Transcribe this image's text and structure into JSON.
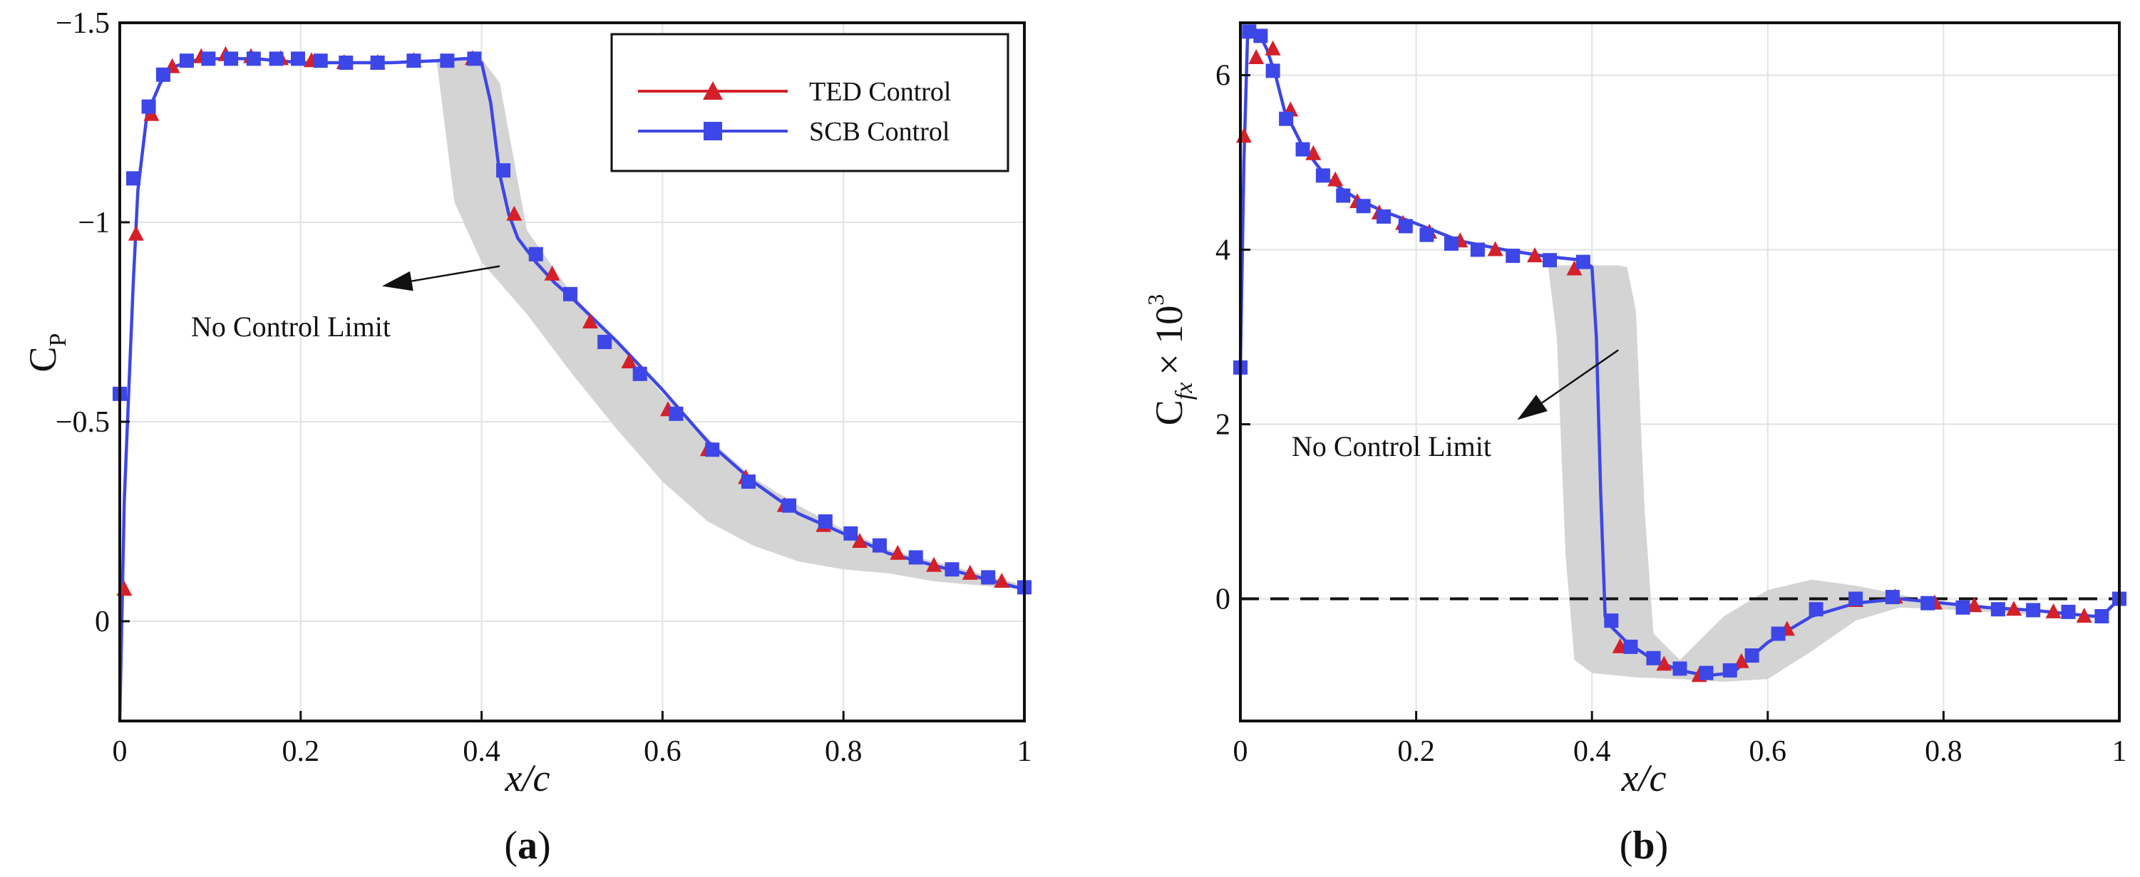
{
  "colors": {
    "ted": "#d4202a",
    "scb": "#3d46e6",
    "band": "#d4d4d4",
    "grid": "#e2e2e2"
  },
  "chart_data": [
    {
      "type": "line",
      "panel_label": "(a)",
      "panel_letter": "a",
      "xlabel": "x/c",
      "ylabel": "C",
      "ylabel_sub": "P",
      "xlim": [
        0,
        1
      ],
      "ylim": [
        0.25,
        -1.5
      ],
      "y_inverted": true,
      "xticks": [
        0,
        0.2,
        0.4,
        0.6,
        0.8,
        1
      ],
      "xtick_labels": [
        "0",
        "0.2",
        "0.4",
        "0.6",
        "0.8",
        "1"
      ],
      "yticks": [
        -1.5,
        -1,
        -0.5,
        0
      ],
      "ytick_labels": [
        "−1.5",
        "−1",
        "−0.5",
        "0"
      ],
      "legend": {
        "placement": "top-right",
        "entries": [
          {
            "name": "TED Control",
            "marker": "triangle",
            "color_key": "ted"
          },
          {
            "name": "SCB Control",
            "marker": "square",
            "color_key": "scb"
          }
        ]
      },
      "band": {
        "name": "No Control Limit",
        "upper": {
          "x": [
            0.35,
            0.36,
            0.38,
            0.4,
            0.42,
            0.45,
            0.5,
            0.55,
            0.6,
            0.65,
            0.7,
            0.75,
            0.8,
            0.85,
            0.9,
            0.95,
            1.0
          ],
          "y": [
            -1.41,
            -1.41,
            -1.41,
            -1.41,
            -1.35,
            -0.98,
            -0.82,
            -0.7,
            -0.57,
            -0.46,
            -0.36,
            -0.29,
            -0.23,
            -0.18,
            -0.15,
            -0.12,
            -0.09
          ]
        },
        "lower": {
          "x": [
            0.35,
            0.37,
            0.4,
            0.45,
            0.5,
            0.55,
            0.6,
            0.65,
            0.7,
            0.75,
            0.8,
            0.85,
            0.9,
            0.95,
            1.0
          ],
          "y": [
            -1.41,
            -1.05,
            -0.9,
            -0.77,
            -0.62,
            -0.48,
            -0.35,
            -0.25,
            -0.19,
            -0.15,
            -0.13,
            -0.12,
            -0.1,
            -0.09,
            -0.08
          ]
        }
      },
      "annotation": {
        "text": "No Control Limit",
        "points_to_x": 0.29,
        "points_to_y": -0.84,
        "from_x": 0.42,
        "from_y": -0.89
      },
      "series": [
        {
          "name": "SCB Control",
          "color_key": "scb",
          "marker": "square",
          "x": [
            0.0,
            0.005,
            0.01,
            0.015,
            0.02,
            0.03,
            0.045,
            0.06,
            0.08,
            0.1,
            0.12,
            0.15,
            0.2,
            0.25,
            0.3,
            0.35,
            0.38,
            0.39,
            0.4,
            0.41,
            0.42,
            0.43,
            0.44,
            0.46,
            0.48,
            0.5,
            0.55,
            0.6,
            0.65,
            0.7,
            0.75,
            0.8,
            0.85,
            0.9,
            0.95,
            1.0
          ],
          "y": [
            0.25,
            -0.3,
            -0.58,
            -0.85,
            -1.08,
            -1.27,
            -1.35,
            -1.39,
            -1.405,
            -1.41,
            -1.41,
            -1.41,
            -1.4,
            -1.4,
            -1.4,
            -1.405,
            -1.41,
            -1.41,
            -1.4,
            -1.3,
            -1.12,
            -1.02,
            -0.96,
            -0.9,
            -0.85,
            -0.81,
            -0.7,
            -0.58,
            -0.45,
            -0.35,
            -0.27,
            -0.22,
            -0.17,
            -0.14,
            -0.11,
            -0.08
          ],
          "markers_x": [
            0.0,
            0.015,
            0.032,
            0.048,
            0.074,
            0.098,
            0.123,
            0.148,
            0.173,
            0.197,
            0.222,
            0.25,
            0.285,
            0.325,
            0.362,
            0.392,
            0.424,
            0.46,
            0.498,
            0.536,
            0.575,
            0.615,
            0.655,
            0.695,
            0.74,
            0.78,
            0.808,
            0.84,
            0.88,
            0.92,
            0.96,
            1.0
          ],
          "markers_y": [
            -0.57,
            -1.11,
            -1.29,
            -1.37,
            -1.405,
            -1.41,
            -1.41,
            -1.41,
            -1.41,
            -1.41,
            -1.405,
            -1.4,
            -1.4,
            -1.405,
            -1.405,
            -1.41,
            -1.13,
            -0.92,
            -0.82,
            -0.7,
            -0.62,
            -0.52,
            -0.43,
            -0.35,
            -0.29,
            -0.25,
            -0.22,
            -0.19,
            -0.16,
            -0.13,
            -0.11,
            -0.085
          ]
        },
        {
          "name": "TED Control",
          "color_key": "ted",
          "marker": "triangle",
          "markers_x": [
            0.005,
            0.018,
            0.035,
            0.058,
            0.09,
            0.117,
            0.145,
            0.178,
            0.212,
            0.248,
            0.285,
            0.325,
            0.39,
            0.436,
            0.478,
            0.52,
            0.563,
            0.606,
            0.65,
            0.692,
            0.735,
            0.778,
            0.818,
            0.86,
            0.9,
            0.94,
            0.975
          ],
          "markers_y": [
            -0.08,
            -0.97,
            -1.27,
            -1.39,
            -1.415,
            -1.42,
            -1.415,
            -1.41,
            -1.405,
            -1.4,
            -1.4,
            -1.405,
            -1.41,
            -1.02,
            -0.87,
            -0.75,
            -0.65,
            -0.53,
            -0.43,
            -0.36,
            -0.29,
            -0.24,
            -0.2,
            -0.17,
            -0.14,
            -0.12,
            -0.1
          ]
        }
      ]
    },
    {
      "type": "line",
      "panel_label": "(b)",
      "panel_letter": "b",
      "xlabel": "x/c",
      "ylabel": "C",
      "ylabel_sub": "fx",
      "ylabel_times": "× 10",
      "ylabel_sup": "3",
      "xlim": [
        0,
        1
      ],
      "ylim": [
        -1.4,
        6.6
      ],
      "y_inverted": false,
      "xticks": [
        0,
        0.2,
        0.4,
        0.6,
        0.8,
        1
      ],
      "xtick_labels": [
        "0",
        "0.2",
        "0.4",
        "0.6",
        "0.8",
        "1"
      ],
      "yticks": [
        0,
        2,
        4,
        6
      ],
      "ytick_labels": [
        "0",
        "2",
        "4",
        "6"
      ],
      "reference_line": {
        "y": 0,
        "style": "dashed"
      },
      "band": {
        "name": "No Control Limit",
        "upper": {
          "x": [
            0.35,
            0.38,
            0.4,
            0.43,
            0.44,
            0.45,
            0.46,
            0.47,
            0.5,
            0.55,
            0.6,
            0.65,
            0.7,
            0.75,
            0.8,
            0.85,
            0.9
          ],
          "y": [
            3.82,
            3.82,
            3.82,
            3.82,
            3.8,
            3.3,
            1.0,
            -0.4,
            -0.7,
            -0.2,
            0.1,
            0.22,
            0.15,
            0.05,
            -0.05,
            -0.1,
            -0.15
          ]
        },
        "lower": {
          "x": [
            0.35,
            0.36,
            0.37,
            0.38,
            0.4,
            0.45,
            0.5,
            0.55,
            0.6,
            0.65,
            0.7,
            0.75,
            0.8,
            0.85,
            0.9
          ],
          "y": [
            3.82,
            3.0,
            0.5,
            -0.7,
            -0.85,
            -0.9,
            -0.92,
            -0.95,
            -0.92,
            -0.6,
            -0.25,
            -0.1,
            -0.12,
            -0.15,
            -0.18
          ]
        }
      },
      "annotation": {
        "text": "No Control Limit",
        "points_to_x": 0.315,
        "points_to_y": 2.05,
        "from_x": 0.43,
        "from_y": 2.85
      },
      "series": [
        {
          "name": "SCB Control",
          "color_key": "scb",
          "marker": "square",
          "x": [
            0.0,
            0.004,
            0.008,
            0.012,
            0.02,
            0.03,
            0.04,
            0.05,
            0.07,
            0.1,
            0.13,
            0.16,
            0.2,
            0.25,
            0.3,
            0.35,
            0.39,
            0.4,
            0.405,
            0.41,
            0.415,
            0.42,
            0.425,
            0.44,
            0.47,
            0.5,
            0.53,
            0.56,
            0.6,
            0.65,
            0.7,
            0.75,
            0.8,
            0.85,
            0.9,
            0.95,
            0.97,
            0.98,
            1.0
          ],
          "y": [
            2.65,
            5.0,
            6.4,
            6.55,
            6.5,
            6.3,
            6.0,
            5.6,
            5.2,
            4.8,
            4.6,
            4.45,
            4.3,
            4.1,
            4.0,
            3.92,
            3.88,
            3.8,
            3.0,
            1.2,
            -0.2,
            -0.3,
            -0.35,
            -0.5,
            -0.7,
            -0.82,
            -0.88,
            -0.85,
            -0.5,
            -0.2,
            -0.05,
            0.0,
            -0.05,
            -0.1,
            -0.13,
            -0.18,
            -0.2,
            -0.2,
            0.0
          ],
          "markers_x": [
            0.0,
            0.01,
            0.023,
            0.037,
            0.052,
            0.071,
            0.094,
            0.117,
            0.14,
            0.163,
            0.188,
            0.212,
            0.24,
            0.27,
            0.31,
            0.352,
            0.39,
            0.422,
            0.444,
            0.47,
            0.5,
            0.53,
            0.557,
            0.582,
            0.612,
            0.655,
            0.7,
            0.742,
            0.782,
            0.822,
            0.862,
            0.902,
            0.942,
            0.98,
            1.0
          ],
          "markers_y": [
            2.65,
            6.5,
            6.45,
            6.05,
            5.5,
            5.15,
            4.85,
            4.62,
            4.5,
            4.38,
            4.27,
            4.17,
            4.07,
            4.0,
            3.93,
            3.88,
            3.86,
            -0.25,
            -0.55,
            -0.68,
            -0.8,
            -0.85,
            -0.82,
            -0.65,
            -0.4,
            -0.12,
            0.0,
            0.02,
            -0.05,
            -0.1,
            -0.12,
            -0.13,
            -0.15,
            -0.2,
            0.0
          ]
        },
        {
          "name": "TED Control",
          "color_key": "ted",
          "marker": "triangle",
          "markers_x": [
            0.004,
            0.018,
            0.037,
            0.057,
            0.083,
            0.108,
            0.133,
            0.158,
            0.185,
            0.215,
            0.25,
            0.29,
            0.335,
            0.38,
            0.432,
            0.482,
            0.522,
            0.57,
            0.622,
            0.7,
            0.745,
            0.79,
            0.835,
            0.88,
            0.925,
            0.96
          ],
          "markers_y": [
            5.3,
            6.2,
            6.3,
            5.6,
            5.1,
            4.8,
            4.55,
            4.42,
            4.3,
            4.2,
            4.1,
            4.0,
            3.93,
            3.78,
            -0.55,
            -0.75,
            -0.88,
            -0.72,
            -0.35,
            -0.02,
            0.02,
            -0.05,
            -0.08,
            -0.12,
            -0.15,
            -0.2
          ]
        }
      ]
    }
  ]
}
